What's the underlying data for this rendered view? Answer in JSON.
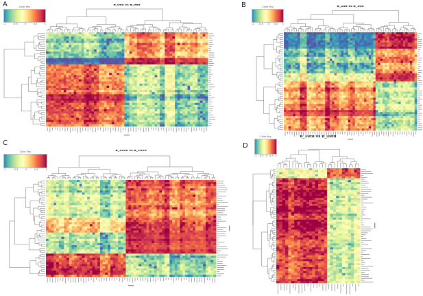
{
  "figure": {
    "background": "#ffffff",
    "description": "Four-panel clustered heatmap figure with row and column dendrograms"
  },
  "color_key": {
    "title": "Color Key",
    "ticks": [
      "-1",
      "-0.5",
      "0",
      "0.5",
      "1"
    ]
  },
  "colormap": {
    "name": "spectral-reversed",
    "stops": [
      "#5E4FA2",
      "#3288BD",
      "#66C2A5",
      "#ABDDA4",
      "#E6F598",
      "#FFFFBF",
      "#FEE08B",
      "#FDAE61",
      "#F46D43",
      "#D53E4F",
      "#9E0142"
    ]
  },
  "chart_data": [
    {
      "type": "heatmap",
      "panel": "A",
      "title": "B_06d vs B_06d",
      "xlabel": "",
      "ylabel": "",
      "value_range": [
        -1,
        1
      ],
      "n_rows": 44,
      "n_cols": 64,
      "col_group_split": 0.48,
      "row_group_split": 0.35,
      "row_bands": [
        {
          "frac": 0.28,
          "left": -0.42,
          "right": 0.45
        },
        {
          "frac": 0.07,
          "left": -0.88,
          "right": 0.88
        },
        {
          "frac": 0.3,
          "left": 0.55,
          "right": -0.35
        },
        {
          "frac": 0.08,
          "left": 0.85,
          "right": -0.65
        },
        {
          "frac": 0.27,
          "left": 0.62,
          "right": -0.45
        }
      ],
      "seed": 11,
      "dendrograms": [
        "top",
        "left"
      ],
      "legend_position": "top-left"
    },
    {
      "type": "heatmap",
      "panel": "B",
      "title": "B_10d vs B_10d",
      "xlabel": "",
      "ylabel": "",
      "value_range": [
        -1,
        1
      ],
      "n_rows": 48,
      "n_cols": 58,
      "col_group_split": 0.69,
      "row_group_split": 0.5,
      "row_bands": [
        {
          "frac": 0.17,
          "left": -0.78,
          "right": 0.65
        },
        {
          "frac": 0.25,
          "left": -0.38,
          "right": 0.35
        },
        {
          "frac": 0.08,
          "left": 0.05,
          "right": 0.75
        },
        {
          "frac": 0.3,
          "left": 0.55,
          "right": -0.4
        },
        {
          "frac": 0.06,
          "left": 0.85,
          "right": -0.55
        },
        {
          "frac": 0.14,
          "left": 0.6,
          "right": -0.42
        }
      ],
      "seed": 23,
      "dendrograms": [
        "top",
        "left"
      ],
      "legend_position": "top-left"
    },
    {
      "type": "heatmap",
      "panel": "C",
      "title": "B_190d vs B_190d",
      "xlabel": "",
      "ylabel": "",
      "value_range": [
        -1,
        1
      ],
      "n_rows": 46,
      "n_cols": 66,
      "col_group_split": 0.47,
      "row_group_split": 0.75,
      "row_bands": [
        {
          "frac": 0.13,
          "left": -0.52,
          "right": 0.6
        },
        {
          "frac": 0.26,
          "left": -0.32,
          "right": 0.55
        },
        {
          "frac": 0.16,
          "left": 0.05,
          "right": 0.68
        },
        {
          "frac": 0.2,
          "left": -0.45,
          "right": 0.8
        },
        {
          "frac": 0.25,
          "left": 0.6,
          "right": -0.42
        }
      ],
      "seed": 37,
      "dendrograms": [
        "top",
        "left"
      ],
      "legend_position": "top-left"
    },
    {
      "type": "heatmap",
      "panel": "D",
      "title": "B_10td vs B_10td",
      "xlabel": "",
      "ylabel": "",
      "value_range": [
        -1,
        1
      ],
      "n_rows": 58,
      "n_cols": 28,
      "col_group_split": 0.62,
      "row_group_split": 0.1,
      "row_bands": [
        {
          "frac": 0.09,
          "left": -0.3,
          "right": 0.5
        },
        {
          "frac": 0.44,
          "left": 0.68,
          "right": -0.35
        },
        {
          "frac": 0.47,
          "left": 0.58,
          "right": -0.3
        }
      ],
      "seed": 53,
      "dendrograms": [
        "top",
        "left"
      ],
      "legend_position": "top-left"
    }
  ]
}
